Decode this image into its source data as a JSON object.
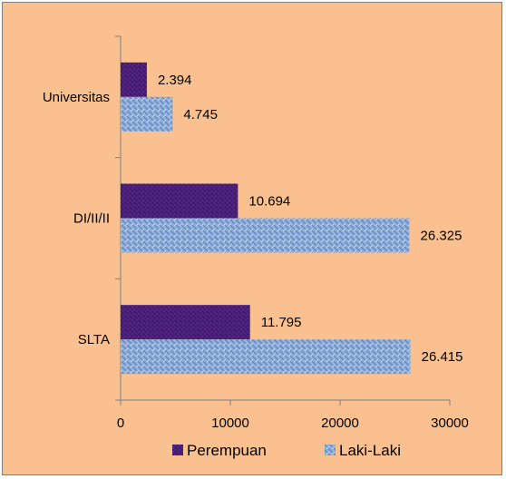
{
  "chart_data": {
    "type": "bar",
    "orientation": "horizontal",
    "categories": [
      "Universitas",
      "DI/II/II",
      "SLTA"
    ],
    "series": [
      {
        "name": "Perempuan",
        "values": [
          2394,
          10694,
          11795
        ],
        "labels": [
          "2.394",
          "10.694",
          "11.795"
        ],
        "color": "#4b1f7a"
      },
      {
        "name": "Laki-Laki",
        "values": [
          4745,
          26325,
          26415
        ],
        "labels": [
          "4.745",
          "26.325",
          "26.415"
        ],
        "color": "#8fb0dc"
      }
    ],
    "xlim": [
      0,
      30000
    ],
    "xticks": [
      0,
      10000,
      20000,
      30000
    ],
    "xtick_labels": [
      "0",
      "10000",
      "20000",
      "30000"
    ],
    "grid": false,
    "legend_position": "bottom",
    "background": "#fac090"
  }
}
